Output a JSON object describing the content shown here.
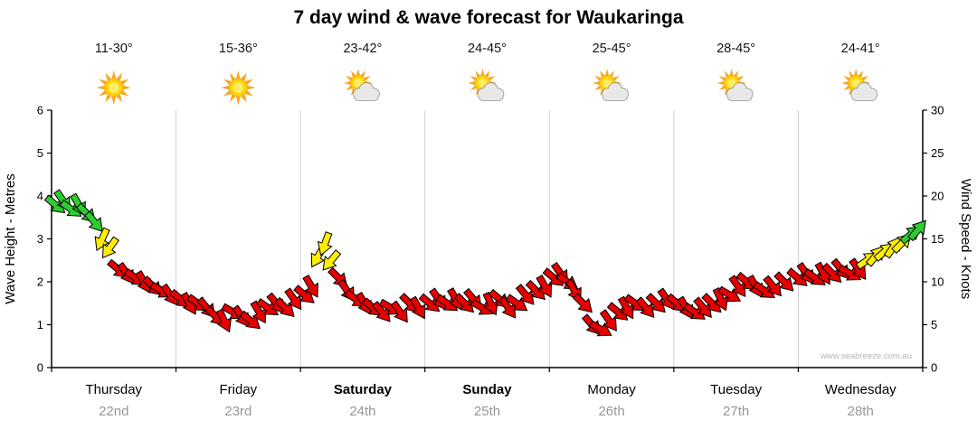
{
  "watermark": "www.seabreeze.com.au",
  "chart_data": {
    "type": "scatter",
    "title": "7 day wind & wave forecast for Waukaringa",
    "left_axis": {
      "label": "Wave Height - Metres",
      "min": 0,
      "max": 6,
      "step": 1
    },
    "right_axis": {
      "label": "Wind Speed - Knots",
      "min": 0,
      "max": 30,
      "step": 5
    },
    "days": [
      {
        "name": "Thursday",
        "date": "22nd",
        "temp": "11-30°",
        "icon": "sunny",
        "weekend": false
      },
      {
        "name": "Friday",
        "date": "23rd",
        "temp": "15-36°",
        "icon": "sunny",
        "weekend": false
      },
      {
        "name": "Saturday",
        "date": "24th",
        "temp": "23-42°",
        "icon": "partly-cloudy",
        "weekend": true
      },
      {
        "name": "Sunday",
        "date": "25th",
        "temp": "24-45°",
        "icon": "partly-cloudy",
        "weekend": true
      },
      {
        "name": "Monday",
        "date": "26th",
        "temp": "25-45°",
        "icon": "partly-cloudy",
        "weekend": false
      },
      {
        "name": "Tuesday",
        "date": "27th",
        "temp": "28-45°",
        "icon": "partly-cloudy",
        "weekend": false
      },
      {
        "name": "Wednesday",
        "date": "28th",
        "temp": "24-41°",
        "icon": "partly-cloudy",
        "weekend": false
      }
    ],
    "wind_colors": {
      "green": "#2fcc2f",
      "yellow": "#ffee00",
      "red": "#e60000",
      "green_min_knots": 15.5,
      "yellow_min_knots": 12
    },
    "arrow_format": "[x_fraction_of_week, wind_knots, angle_deg]",
    "arrows": [
      [
        0.004,
        19,
        40
      ],
      [
        0.013,
        19.5,
        55
      ],
      [
        0.022,
        18.5,
        35
      ],
      [
        0.031,
        19,
        60
      ],
      [
        0.04,
        18,
        45
      ],
      [
        0.049,
        17,
        50
      ],
      [
        0.058,
        15,
        115
      ],
      [
        0.067,
        14,
        125
      ],
      [
        0.076,
        11.5,
        40
      ],
      [
        0.086,
        11,
        55
      ],
      [
        0.096,
        10.5,
        35
      ],
      [
        0.106,
        10,
        60
      ],
      [
        0.116,
        9.5,
        45
      ],
      [
        0.126,
        9,
        30
      ],
      [
        0.136,
        8.5,
        55
      ],
      [
        0.148,
        8,
        40
      ],
      [
        0.158,
        7.5,
        60
      ],
      [
        0.168,
        7.5,
        35
      ],
      [
        0.178,
        7,
        50
      ],
      [
        0.188,
        6,
        45
      ],
      [
        0.198,
        5.5,
        65
      ],
      [
        0.208,
        6.5,
        30
      ],
      [
        0.218,
        6,
        55
      ],
      [
        0.228,
        5.5,
        40
      ],
      [
        0.238,
        6.5,
        60
      ],
      [
        0.248,
        7,
        35
      ],
      [
        0.258,
        7.5,
        50
      ],
      [
        0.268,
        7,
        45
      ],
      [
        0.278,
        8,
        55
      ],
      [
        0.29,
        8.5,
        40
      ],
      [
        0.298,
        9.5,
        60
      ],
      [
        0.306,
        13,
        120
      ],
      [
        0.314,
        14.5,
        110
      ],
      [
        0.321,
        12.5,
        130
      ],
      [
        0.329,
        10.5,
        45
      ],
      [
        0.339,
        9,
        55
      ],
      [
        0.349,
        8,
        35
      ],
      [
        0.359,
        7.5,
        60
      ],
      [
        0.369,
        7,
        40
      ],
      [
        0.379,
        6.5,
        50
      ],
      [
        0.389,
        7,
        30
      ],
      [
        0.4,
        6.5,
        55
      ],
      [
        0.411,
        7.5,
        45
      ],
      [
        0.421,
        7,
        60
      ],
      [
        0.434,
        7.5,
        40
      ],
      [
        0.444,
        8,
        55
      ],
      [
        0.454,
        7.5,
        35
      ],
      [
        0.464,
        8,
        60
      ],
      [
        0.474,
        7.5,
        45
      ],
      [
        0.484,
        8,
        50
      ],
      [
        0.494,
        7,
        30
      ],
      [
        0.504,
        7.5,
        65
      ],
      [
        0.514,
        8,
        40
      ],
      [
        0.524,
        7,
        55
      ],
      [
        0.534,
        7.5,
        35
      ],
      [
        0.544,
        8.5,
        50
      ],
      [
        0.556,
        9,
        45
      ],
      [
        0.566,
        9.5,
        60
      ],
      [
        0.576,
        10.5,
        40
      ],
      [
        0.584,
        11,
        55
      ],
      [
        0.592,
        10,
        35
      ],
      [
        0.6,
        9,
        60
      ],
      [
        0.61,
        7.5,
        45
      ],
      [
        0.62,
        5,
        50
      ],
      [
        0.63,
        4.5,
        30
      ],
      [
        0.64,
        5.5,
        55
      ],
      [
        0.65,
        6.5,
        40
      ],
      [
        0.66,
        7,
        60
      ],
      [
        0.67,
        7.5,
        35
      ],
      [
        0.682,
        7,
        50
      ],
      [
        0.694,
        7.5,
        45
      ],
      [
        0.706,
        8,
        55
      ],
      [
        0.718,
        7.5,
        40
      ],
      [
        0.728,
        7,
        60
      ],
      [
        0.738,
        6.5,
        35
      ],
      [
        0.748,
        7,
        50
      ],
      [
        0.758,
        7.5,
        45
      ],
      [
        0.768,
        8,
        65
      ],
      [
        0.778,
        8.5,
        30
      ],
      [
        0.788,
        9.5,
        55
      ],
      [
        0.798,
        10,
        40
      ],
      [
        0.808,
        9.5,
        60
      ],
      [
        0.818,
        9,
        35
      ],
      [
        0.828,
        9.5,
        50
      ],
      [
        0.841,
        10,
        45
      ],
      [
        0.856,
        10.5,
        40
      ],
      [
        0.866,
        11,
        55
      ],
      [
        0.876,
        10.5,
        35
      ],
      [
        0.886,
        11,
        60
      ],
      [
        0.896,
        11,
        45
      ],
      [
        0.906,
        11.5,
        50
      ],
      [
        0.916,
        11,
        30
      ],
      [
        0.926,
        11.5,
        55
      ],
      [
        0.936,
        12.5,
        -35
      ],
      [
        0.946,
        13,
        -50
      ],
      [
        0.956,
        13.5,
        -40
      ],
      [
        0.966,
        14,
        -55
      ],
      [
        0.976,
        14.5,
        -45
      ],
      [
        0.986,
        15.5,
        -40
      ],
      [
        0.994,
        16,
        -50
      ]
    ]
  }
}
